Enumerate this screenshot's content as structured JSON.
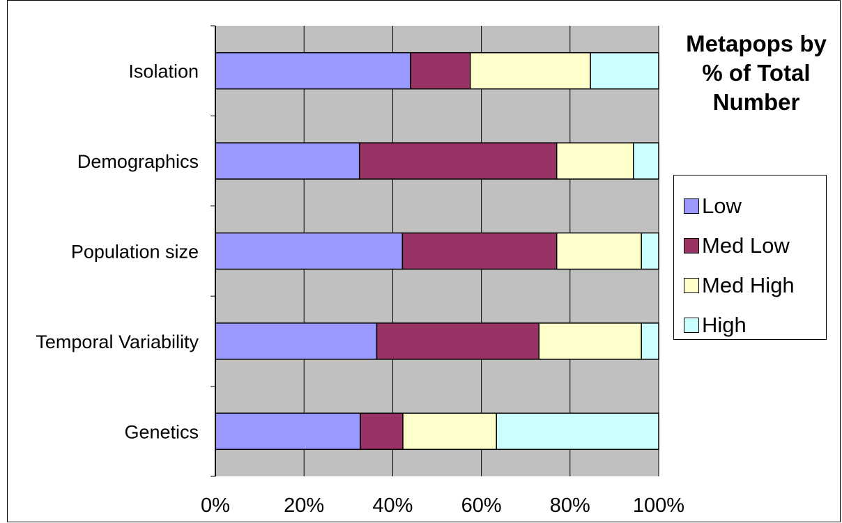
{
  "chart_data": {
    "type": "bar",
    "orientation": "horizontal",
    "stacked": "percent",
    "title": "Metapops by % of Total Number",
    "categories": [
      "Isolation",
      "Demographics",
      "Population size",
      "Temporal Variability",
      "Genetics"
    ],
    "series": [
      {
        "name": "Low",
        "color": "#9999ff",
        "values": [
          44,
          32.5,
          42.2,
          36.4,
          32.7
        ]
      },
      {
        "name": "Med Low",
        "color": "#993366",
        "values": [
          13.5,
          44.5,
          34.8,
          36.6,
          9.6
        ]
      },
      {
        "name": "Med High",
        "color": "#ffffcc",
        "values": [
          27.1,
          17.3,
          19.1,
          23.1,
          21.1
        ]
      },
      {
        "name": "High",
        "color": "#ccffff",
        "values": [
          15.4,
          5.7,
          3.9,
          3.9,
          36.6
        ]
      }
    ],
    "x_ticks": [
      "0%",
      "20%",
      "40%",
      "60%",
      "80%",
      "100%"
    ],
    "xlim": [
      0,
      100
    ],
    "grid": true,
    "plot_background": "#c0c0c0",
    "legend_position": "right"
  }
}
